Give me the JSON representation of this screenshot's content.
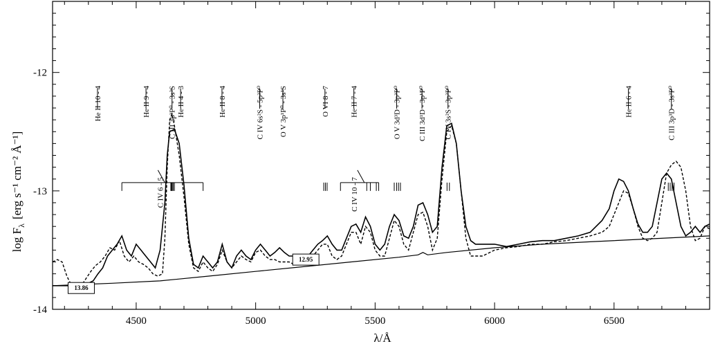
{
  "chart_data": {
    "type": "line",
    "title": "",
    "xlabel": "λ/Å",
    "ylabel": "log F",
    "ylabel_sub": "λ",
    "ylabel_units": "[erg s⁻¹ cm⁻² Å⁻¹]",
    "xlim": [
      4150,
      6900
    ],
    "ylim": [
      -14,
      -11.4
    ],
    "xticks": [
      4500,
      5000,
      5500,
      6000,
      6500
    ],
    "xtick_labels": [
      "4500",
      "5000",
      "5500",
      "6000",
      "6500"
    ],
    "yticks": [
      -12,
      -13,
      -14
    ],
    "ytick_labels": [
      "-12",
      "-13",
      "-14"
    ],
    "grid": false,
    "legend": "none",
    "series": [
      {
        "style": "solid",
        "x": [
          4150,
          4190,
          4220,
          4250,
          4280,
          4300,
          4320,
          4340,
          4360,
          4380,
          4400,
          4420,
          4440,
          4460,
          4480,
          4500,
          4520,
          4540,
          4560,
          4580,
          4600,
          4620,
          4630,
          4640,
          4660,
          4680,
          4700,
          4720,
          4740,
          4760,
          4780,
          4800,
          4820,
          4840,
          4860,
          4880,
          4900,
          4920,
          4940,
          4960,
          4980,
          5000,
          5020,
          5040,
          5060,
          5080,
          5100,
          5120,
          5140,
          5160,
          5180,
          5200,
          5220,
          5240,
          5260,
          5280,
          5300,
          5320,
          5340,
          5360,
          5380,
          5400,
          5420,
          5440,
          5460,
          5480,
          5500,
          5520,
          5540,
          5560,
          5580,
          5600,
          5620,
          5640,
          5660,
          5680,
          5700,
          5720,
          5740,
          5760,
          5780,
          5800,
          5820,
          5840,
          5860,
          5880,
          5900,
          5920,
          5950,
          6000,
          6050,
          6100,
          6150,
          6200,
          6250,
          6300,
          6350,
          6400,
          6450,
          6480,
          6500,
          6520,
          6540,
          6560,
          6580,
          6600,
          6620,
          6640,
          6660,
          6680,
          6700,
          6720,
          6740,
          6760,
          6780,
          6800,
          6820,
          6840,
          6860,
          6880,
          6900
        ],
        "y": [
          -13.8,
          -13.8,
          -13.8,
          -13.79,
          -13.79,
          -13.78,
          -13.76,
          -13.7,
          -13.65,
          -13.55,
          -13.5,
          -13.45,
          -13.38,
          -13.5,
          -13.55,
          -13.45,
          -13.5,
          -13.55,
          -13.6,
          -13.65,
          -13.5,
          -13.1,
          -12.7,
          -12.5,
          -12.48,
          -12.6,
          -12.95,
          -13.4,
          -13.62,
          -13.65,
          -13.55,
          -13.6,
          -13.65,
          -13.6,
          -13.45,
          -13.6,
          -13.65,
          -13.55,
          -13.5,
          -13.55,
          -13.58,
          -13.5,
          -13.45,
          -13.5,
          -13.55,
          -13.52,
          -13.48,
          -13.52,
          -13.55,
          -13.55,
          -13.58,
          -13.6,
          -13.55,
          -13.5,
          -13.45,
          -13.42,
          -13.38,
          -13.45,
          -13.5,
          -13.5,
          -13.4,
          -13.3,
          -13.28,
          -13.35,
          -13.22,
          -13.3,
          -13.45,
          -13.5,
          -13.45,
          -13.3,
          -13.2,
          -13.25,
          -13.38,
          -13.4,
          -13.3,
          -13.12,
          -13.1,
          -13.2,
          -13.35,
          -13.3,
          -12.8,
          -12.45,
          -12.43,
          -12.6,
          -13.0,
          -13.3,
          -13.42,
          -13.45,
          -13.45,
          -13.45,
          -13.47,
          -13.45,
          -13.43,
          -13.42,
          -13.42,
          -13.4,
          -13.38,
          -13.35,
          -13.25,
          -13.15,
          -13.0,
          -12.9,
          -12.92,
          -13.0,
          -13.15,
          -13.28,
          -13.35,
          -13.35,
          -13.3,
          -13.1,
          -12.9,
          -12.85,
          -12.9,
          -13.1,
          -13.3,
          -13.38,
          -13.35,
          -13.3,
          -13.35,
          -13.3,
          -13.28
        ]
      },
      {
        "style": "dashed",
        "x": [
          4150,
          4170,
          4190,
          4210,
          4230,
          4250,
          4270,
          4290,
          4310,
          4330,
          4350,
          4370,
          4390,
          4410,
          4430,
          4450,
          4470,
          4490,
          4510,
          4530,
          4550,
          4570,
          4590,
          4610,
          4620,
          4630,
          4640,
          4650,
          4660,
          4680,
          4700,
          4720,
          4740,
          4760,
          4780,
          4800,
          4820,
          4840,
          4860,
          4880,
          4900,
          4920,
          4940,
          4960,
          4980,
          5000,
          5020,
          5040,
          5060,
          5080,
          5100,
          5120,
          5140,
          5160,
          5180,
          5200,
          5220,
          5240,
          5260,
          5280,
          5300,
          5320,
          5340,
          5360,
          5380,
          5400,
          5420,
          5440,
          5460,
          5480,
          5500,
          5520,
          5540,
          5560,
          5580,
          5600,
          5620,
          5640,
          5660,
          5680,
          5700,
          5720,
          5740,
          5760,
          5780,
          5800,
          5820,
          5840,
          5860,
          5880,
          5900,
          5950,
          6000,
          6050,
          6100,
          6150,
          6200,
          6250,
          6300,
          6350,
          6400,
          6450,
          6480,
          6500,
          6520,
          6540,
          6560,
          6580,
          6600,
          6620,
          6640,
          6660,
          6680,
          6700,
          6720,
          6740,
          6760,
          6780,
          6800,
          6820,
          6840,
          6860,
          6880,
          6900
        ],
        "y": [
          -13.6,
          -13.58,
          -13.6,
          -13.72,
          -13.8,
          -13.82,
          -13.8,
          -13.74,
          -13.68,
          -13.63,
          -13.6,
          -13.55,
          -13.48,
          -13.5,
          -13.42,
          -13.55,
          -13.6,
          -13.55,
          -13.6,
          -13.62,
          -13.65,
          -13.7,
          -13.72,
          -13.7,
          -13.4,
          -12.8,
          -12.4,
          -12.35,
          -12.45,
          -12.7,
          -13.05,
          -13.45,
          -13.65,
          -13.68,
          -13.6,
          -13.65,
          -13.68,
          -13.62,
          -13.5,
          -13.6,
          -13.65,
          -13.6,
          -13.55,
          -13.58,
          -13.6,
          -13.52,
          -13.5,
          -13.55,
          -13.58,
          -13.58,
          -13.6,
          -13.6,
          -13.6,
          -13.62,
          -13.6,
          -13.6,
          -13.58,
          -13.55,
          -13.5,
          -13.45,
          -13.45,
          -13.55,
          -13.58,
          -13.55,
          -13.45,
          -13.35,
          -13.35,
          -13.45,
          -13.3,
          -13.35,
          -13.5,
          -13.55,
          -13.55,
          -13.4,
          -13.25,
          -13.3,
          -13.45,
          -13.5,
          -13.35,
          -13.2,
          -13.18,
          -13.3,
          -13.5,
          -13.4,
          -12.9,
          -12.5,
          -12.45,
          -12.6,
          -13.0,
          -13.4,
          -13.55,
          -13.55,
          -13.5,
          -13.48,
          -13.47,
          -13.45,
          -13.45,
          -13.43,
          -13.42,
          -13.4,
          -13.38,
          -13.35,
          -13.3,
          -13.2,
          -13.1,
          -13.0,
          -13.02,
          -13.15,
          -13.3,
          -13.4,
          -13.42,
          -13.4,
          -13.35,
          -13.1,
          -12.85,
          -12.78,
          -12.75,
          -12.8,
          -13.0,
          -13.3,
          -13.42,
          -13.4,
          -13.3,
          -13.32
        ]
      },
      {
        "style": "continuum",
        "x": [
          4150,
          4400,
          4600,
          4800,
          5000,
          5200,
          5400,
          5600,
          5680,
          5700,
          5720,
          5800,
          6000,
          6200,
          6400,
          6600,
          6800,
          6900
        ],
        "y": [
          -13.8,
          -13.78,
          -13.76,
          -13.72,
          -13.68,
          -13.64,
          -13.6,
          -13.56,
          -13.54,
          -13.52,
          -13.54,
          -13.52,
          -13.48,
          -13.45,
          -13.43,
          -13.41,
          -13.39,
          -13.38
        ]
      }
    ],
    "line_ids": [
      {
        "label": "He II 10 - 4",
        "x": 4338
      },
      {
        "label": "He II 9 - 4",
        "x": 4541
      },
      {
        "label": "C III 3p³P⁰ - 3s³S",
        "x": 4650
      },
      {
        "label": "He II 4 - 3",
        "x": 4686
      },
      {
        "label": "He II 8 - 4",
        "x": 4859
      },
      {
        "label": "C IV 6s²S - 5p²P⁰",
        "x": 5017
      },
      {
        "label": "O V 3p¹P⁰ - 3s¹S",
        "x": 5114
      },
      {
        "label": "O VI 8 - 7",
        "x": 5290
      },
      {
        "label": "He II 7 - 4",
        "x": 5411
      },
      {
        "label": "O V 3d³D - 3p³P⁰",
        "x": 5590
      },
      {
        "label": "C III 3d¹D - 3p¹P⁰",
        "x": 5696
      },
      {
        "label": "C IV 3s²S - 3p²P⁰",
        "x": 5805
      },
      {
        "label": "He II 6 - 4",
        "x": 6560
      },
      {
        "label": "C III 3p³D - 3s³P⁰",
        "x": 6740
      },
      {
        "label": "C IV 6 - 5",
        "x": 4658
      },
      {
        "label": "C IV 10 - 7",
        "x": 5470
      }
    ],
    "boxed_values": [
      {
        "label": "13.86",
        "x": 4270,
        "y": -13.82
      },
      {
        "label": "12.95",
        "x": 5210,
        "y": -13.58
      }
    ]
  }
}
